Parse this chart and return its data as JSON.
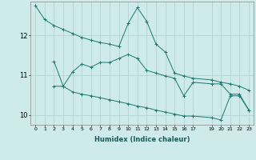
{
  "xlabel": "Humidex (Indice chaleur)",
  "background_color": "#ceeaea",
  "grid_color": "#aed0d0",
  "line_color": "#1a7a6e",
  "x_ticks": [
    0,
    1,
    2,
    3,
    4,
    5,
    6,
    7,
    8,
    9,
    10,
    11,
    12,
    13,
    14,
    15,
    16,
    17,
    19,
    20,
    21,
    22,
    23
  ],
  "ylim": [
    9.75,
    12.85
  ],
  "xlim": [
    -0.5,
    23.5
  ],
  "s1x": [
    0,
    1,
    2,
    3,
    4,
    5,
    6,
    7,
    8,
    9,
    10,
    11,
    12,
    13,
    14,
    15,
    16,
    17,
    19,
    20,
    21,
    22,
    23
  ],
  "s1y": [
    12.75,
    12.4,
    12.25,
    12.15,
    12.05,
    11.95,
    11.88,
    11.82,
    11.78,
    11.72,
    12.3,
    12.7,
    12.35,
    11.78,
    11.58,
    11.05,
    10.98,
    10.92,
    10.88,
    10.82,
    10.78,
    10.72,
    10.62
  ],
  "s2x": [
    2,
    3,
    4,
    5,
    6,
    7,
    8,
    9,
    10,
    11,
    12,
    13,
    14,
    15,
    16,
    17,
    19,
    20,
    21,
    22,
    23
  ],
  "s2y": [
    11.35,
    10.72,
    11.08,
    11.28,
    11.2,
    11.32,
    11.32,
    11.42,
    11.52,
    11.42,
    11.12,
    11.05,
    10.98,
    10.92,
    10.48,
    10.82,
    10.78,
    10.78,
    10.52,
    10.52,
    10.12
  ],
  "s3x": [
    2,
    3,
    4,
    5,
    6,
    7,
    8,
    9,
    10,
    11,
    12,
    13,
    14,
    15,
    16,
    17,
    19,
    20,
    21,
    22,
    23
  ],
  "s3y": [
    10.72,
    10.72,
    10.58,
    10.52,
    10.48,
    10.43,
    10.38,
    10.33,
    10.28,
    10.22,
    10.18,
    10.12,
    10.07,
    10.02,
    9.97,
    9.97,
    9.93,
    9.87,
    10.48,
    10.48,
    10.12
  ]
}
